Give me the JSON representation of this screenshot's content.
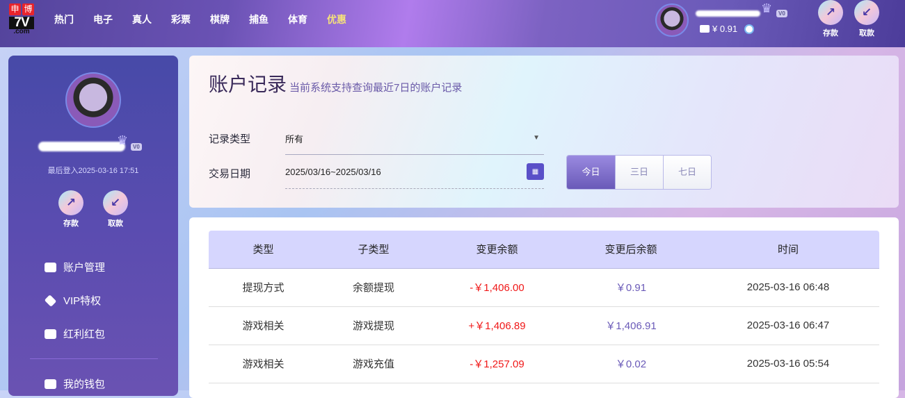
{
  "header": {
    "logo": {
      "top": [
        "申",
        "博"
      ],
      "main": "7V",
      "sub": ".com"
    },
    "nav": [
      "热门",
      "电子",
      "真人",
      "彩票",
      "棋牌",
      "捕鱼",
      "体育",
      "优惠"
    ],
    "vip": "V0",
    "balance": "¥ 0.91",
    "deposit": "存款",
    "withdraw": "取款"
  },
  "sidebar": {
    "vip": "V0",
    "last_login": "最后登入2025-03-16 17:51",
    "deposit": "存款",
    "withdraw": "取款",
    "menu": [
      "账户管理",
      "VIP特权",
      "红利红包",
      "我的钱包"
    ]
  },
  "main": {
    "title": "账户记录",
    "subtitle": "当前系统支持查询最近7日的账户记录",
    "type_label": "记录类型",
    "type_value": "所有",
    "date_label": "交易日期",
    "date_value": "2025/03/16~2025/03/16",
    "ranges": [
      "今日",
      "三日",
      "七日"
    ],
    "active_range": "今日"
  },
  "table": {
    "headers": [
      "类型",
      "子类型",
      "变更余额",
      "变更后余额",
      "时间"
    ],
    "rows": [
      {
        "type": "提现方式",
        "subtype": "余额提现",
        "change": "-￥1,406.00",
        "after": "￥0.91",
        "time": "2025-03-16 06:48"
      },
      {
        "type": "游戏相关",
        "subtype": "游戏提现",
        "change": "+￥1,406.89",
        "after": "￥1,406.91",
        "time": "2025-03-16 06:47"
      },
      {
        "type": "游戏相关",
        "subtype": "游戏充值",
        "change": "-￥1,257.09",
        "after": "￥0.02",
        "time": "2025-03-16 05:54"
      }
    ]
  },
  "colors": {
    "accent": "#6a5ab8",
    "negative_positive_change": "#f01818",
    "promo_nav": "#f6e27a"
  }
}
